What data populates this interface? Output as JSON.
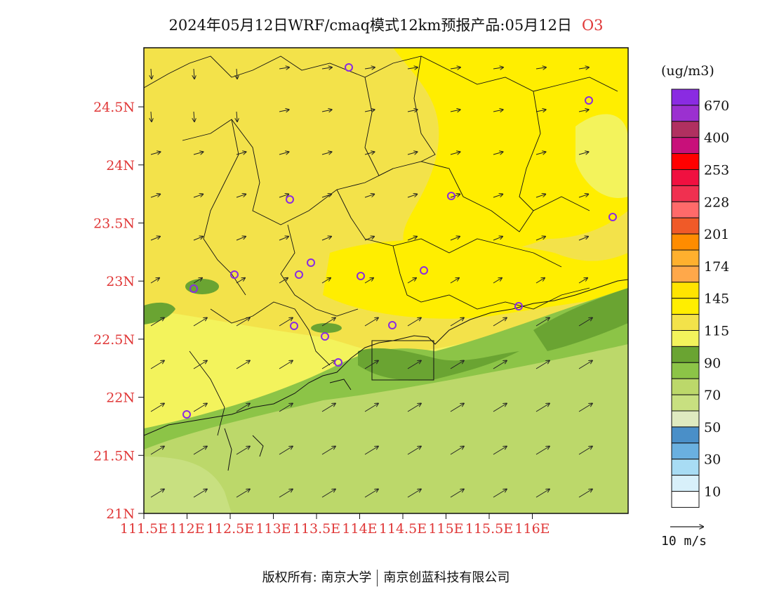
{
  "title": {
    "main": "2024年05月12日WRF/cmaq模式12km预报产品:05月12日",
    "species": "O3"
  },
  "axes": {
    "x_ticks": [
      "111.5E",
      "112E",
      "112.5E",
      "113E",
      "113.5E",
      "114E",
      "114.5E",
      "115E",
      "115.5E",
      "116E"
    ],
    "y_ticks": [
      "21N",
      "21.5N",
      "22N",
      "22.5N",
      "23N",
      "23.5N",
      "24N",
      "24.5N"
    ],
    "tick_color": "#e03838"
  },
  "legend": {
    "units": "(ug/m3)",
    "labels": [
      "670",
      "400",
      "253",
      "228",
      "201",
      "174",
      "145",
      "115",
      "90",
      "70",
      "50",
      "30",
      "10"
    ],
    "colors_top_to_bottom": [
      "#8a2be2",
      "#9b30d0",
      "#b03060",
      "#c8107a",
      "#ff0000",
      "#f01040",
      "#f03050",
      "#ff6a6a",
      "#f05a28",
      "#ff8c00",
      "#ffb02e",
      "#ffa84a",
      "#ffe400",
      "#ffee00",
      "#f3e24a",
      "#f3f35c",
      "#6aa432",
      "#8cc447",
      "#bcd86a",
      "#c8e080",
      "#dfeac0",
      "#4a8fc8",
      "#6ab0e0",
      "#a8dcf4",
      "#d8f0fa",
      "#ffffff"
    ]
  },
  "wind_reference": {
    "label": "10 m/s"
  },
  "footer": {
    "left": "版权所有: 南京大学",
    "right": "南京创蓝科技有限公司"
  },
  "colors": {
    "yellow_light": "#f3e24a",
    "yellow_bright": "#ffee00",
    "yellow_pale": "#f3f35c",
    "green_dark": "#6aa432",
    "green_mid": "#8cc447",
    "green_light": "#bcd86a",
    "station_marker": "#8a2be2"
  }
}
